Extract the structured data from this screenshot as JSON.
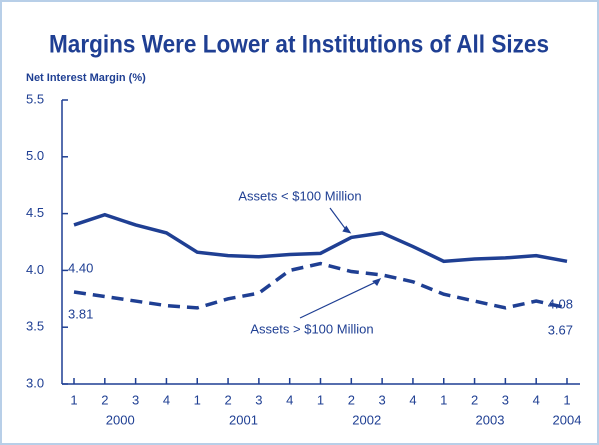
{
  "chart_data": {
    "type": "line",
    "title": "Margins Were Lower at Institutions of All Sizes",
    "y_label": "Net Interest Margin (%)",
    "categories": [
      "1",
      "2",
      "3",
      "4",
      "1",
      "2",
      "3",
      "4",
      "1",
      "2",
      "3",
      "4",
      "1",
      "2",
      "3",
      "4",
      "1"
    ],
    "year_labels": [
      "2000",
      "2001",
      "2002",
      "2003",
      "2004"
    ],
    "series": [
      {
        "name": "Assets < $100 Million",
        "color": "#1f3f93",
        "dash": false,
        "values": [
          4.4,
          4.49,
          4.4,
          4.33,
          4.16,
          4.13,
          4.12,
          4.14,
          4.15,
          4.29,
          4.33,
          4.21,
          4.08,
          4.1,
          4.11,
          4.13,
          4.08
        ],
        "value_labels": [
          "4.40",
          null,
          null,
          null,
          null,
          null,
          null,
          null,
          null,
          null,
          null,
          null,
          null,
          null,
          null,
          null,
          "4.08"
        ]
      },
      {
        "name": "Assets > $100 Million",
        "color": "#1f3f93",
        "dash": true,
        "values": [
          3.81,
          3.77,
          3.73,
          3.69,
          3.67,
          3.75,
          3.8,
          4.0,
          4.06,
          3.99,
          3.96,
          3.9,
          3.79,
          3.73,
          3.67,
          3.73,
          3.67
        ],
        "value_labels": [
          "3.81",
          null,
          null,
          null,
          null,
          null,
          null,
          null,
          null,
          null,
          null,
          null,
          null,
          null,
          null,
          null,
          "3.67"
        ]
      }
    ],
    "ylim": [
      3.0,
      5.5
    ],
    "yticks": [
      {
        "value": 3.0,
        "label": "3.0"
      },
      3.5,
      {
        "value": 4.0,
        "label": "4.0"
      },
      4.5,
      {
        "value": 5.0,
        "label": "5.0"
      },
      5.5
    ]
  }
}
